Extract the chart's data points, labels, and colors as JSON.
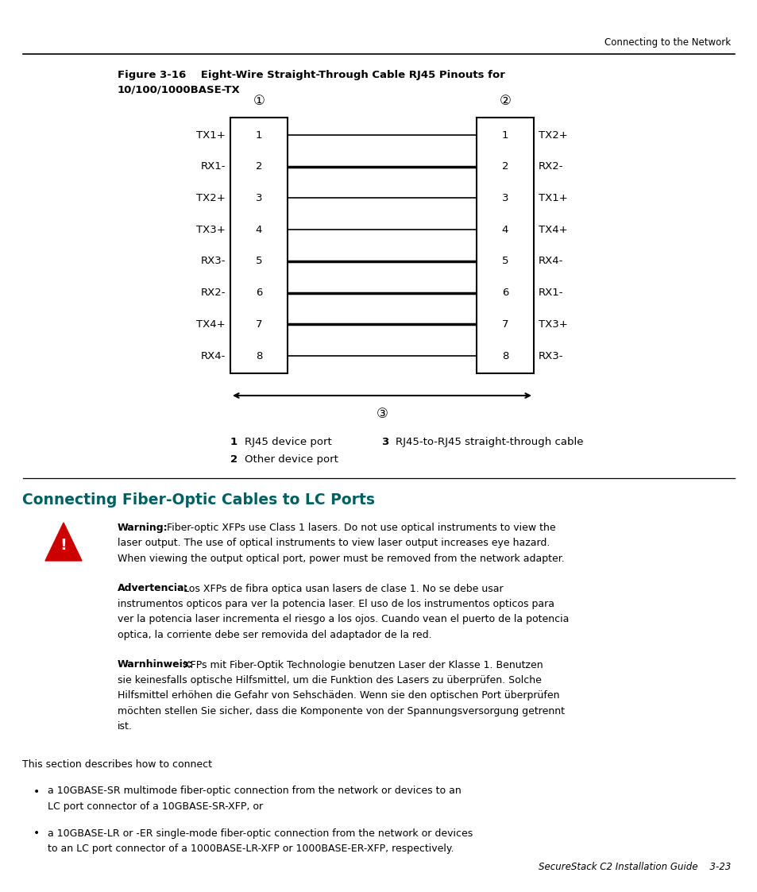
{
  "bg_color": "#ffffff",
  "header_text": "Connecting to the Network",
  "figure_title_line1": "Figure 3-16    Eight-Wire Straight-Through Cable RJ45 Pinouts for",
  "figure_title_line2": "10/100/1000BASE-TX",
  "left_labels": [
    "TX1+",
    "RX1-",
    "TX2+",
    "TX3+",
    "RX3-",
    "RX2-",
    "TX4+",
    "RX4-"
  ],
  "right_labels": [
    "TX2+",
    "RX2-",
    "TX1+",
    "TX4+",
    "RX4-",
    "RX1-",
    "TX3+",
    "RX3-"
  ],
  "wire_lw": [
    1.2,
    2.5,
    1.2,
    1.2,
    2.5,
    2.5,
    2.5,
    1.2
  ],
  "circle1": "①",
  "circle2": "②",
  "circle3": "③",
  "section_title": "Connecting Fiber-Optic Cables to LC Ports",
  "section_title_color": "#006060",
  "warning_triangle_color": "#cc0000",
  "text_color": "#000000",
  "footer_text": "SecureStack C2 Installation Guide    3-23",
  "fs_body": 9.0,
  "fs_title": 9.5,
  "fs_section": 13.5,
  "fs_header": 8.5
}
